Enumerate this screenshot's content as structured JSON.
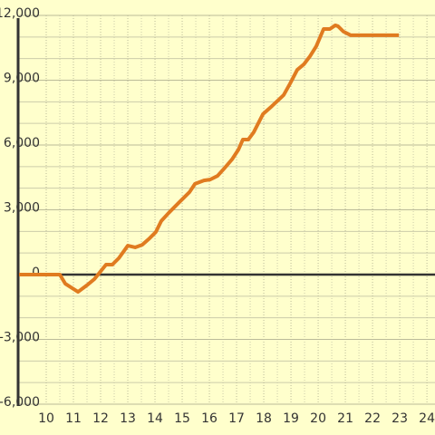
{
  "chart_data": {
    "type": "line",
    "x": [
      9,
      10.5,
      10.7,
      11.17,
      11.53,
      11.77,
      12.2,
      12.43,
      12.67,
      13,
      13.27,
      13.53,
      13.8,
      14.03,
      14.23,
      14.5,
      14.9,
      15.27,
      15.47,
      15.8,
      16.03,
      16.3,
      16.57,
      16.83,
      17.07,
      17.23,
      17.43,
      17.63,
      17.97,
      18.3,
      18.73,
      18.97,
      19.23,
      19.47,
      19.7,
      19.93,
      20.2,
      20.43,
      20.63,
      20.73,
      20.93,
      21.2,
      22.97
    ],
    "series": [
      {
        "color": "#e07b20",
        "values": [
          0,
          0,
          -420,
          -800,
          -460,
          -210,
          460,
          460,
          760,
          1340,
          1260,
          1380,
          1680,
          1970,
          2480,
          2850,
          3360,
          3820,
          4200,
          4360,
          4400,
          4570,
          4950,
          5330,
          5790,
          6250,
          6250,
          6590,
          7430,
          7800,
          8310,
          8850,
          9480,
          9730,
          10110,
          10570,
          11370,
          11370,
          11540,
          11500,
          11250,
          11080,
          11080
        ]
      }
    ],
    "xlim": [
      9,
      24.33
    ],
    "xticks": [
      10,
      11,
      12,
      13,
      14,
      15,
      16,
      17,
      18,
      19,
      20,
      21,
      22,
      23,
      24
    ],
    "xminorticks": [
      10.5,
      11.5,
      12.5,
      13.5,
      14.5,
      15.5,
      16.5,
      17.5,
      18.5,
      19.5,
      20.5,
      21.5,
      22.5,
      23.5
    ],
    "ylim": [
      -6000,
      12000
    ],
    "yticks": [
      {
        "value": 12000,
        "label": "12,000"
      },
      {
        "value": 9000,
        "label": "9,000"
      },
      {
        "value": 6000,
        "label": "6,000"
      },
      {
        "value": 3000,
        "label": "3,000"
      },
      0,
      {
        "value": -3000,
        "label": "-3,000"
      },
      {
        "value": -6000,
        "label": "-6,000"
      }
    ],
    "yminorticks": [
      11000,
      10000,
      8000,
      7000,
      5000,
      4000,
      2000,
      1000,
      -1000,
      -2000,
      -4000,
      -5000
    ],
    "grid": true
  }
}
